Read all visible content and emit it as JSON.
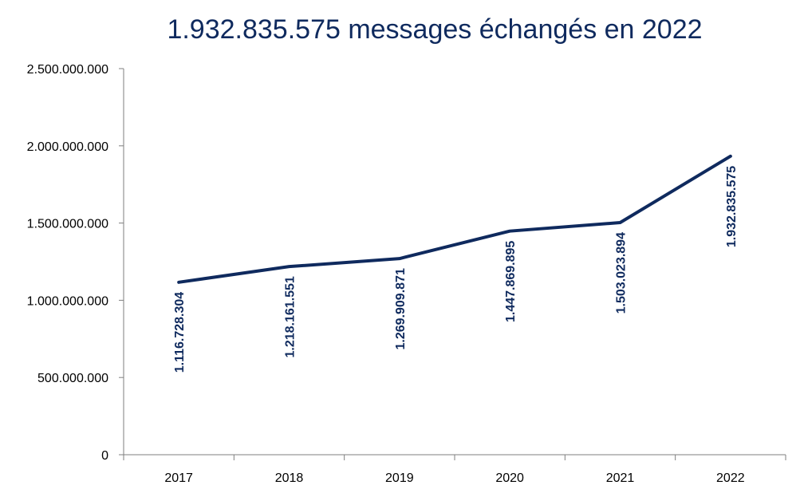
{
  "chart_data": {
    "type": "line",
    "title": "1.932.835.575 messages échangés en 2022",
    "categories": [
      "2017",
      "2018",
      "2019",
      "2020",
      "2021",
      "2022"
    ],
    "series": [
      {
        "values": [
          1116728304,
          1218161551,
          1269909871,
          1447869895,
          1503023894,
          1932835575
        ],
        "labels": [
          "1.116.728.304",
          "1.218.161.551",
          "1.269.909.871",
          "1.447.869.895",
          "1.503.023.894",
          "1.932.835.575"
        ]
      }
    ],
    "y_ticks": [
      0,
      500000000,
      1000000000,
      1500000000,
      2000000000,
      2500000000
    ],
    "y_tick_labels": [
      "0",
      "500.000.000",
      "1.000.000.000",
      "1.500.000.000",
      "2.000.000.000",
      "2.500.000.000"
    ],
    "ylim": [
      0,
      2500000000
    ],
    "grid": false,
    "legend": "none",
    "colors": {
      "line": "#0f2a5e",
      "axis": "#7f7f7f",
      "title": "#0f2a5e"
    }
  }
}
